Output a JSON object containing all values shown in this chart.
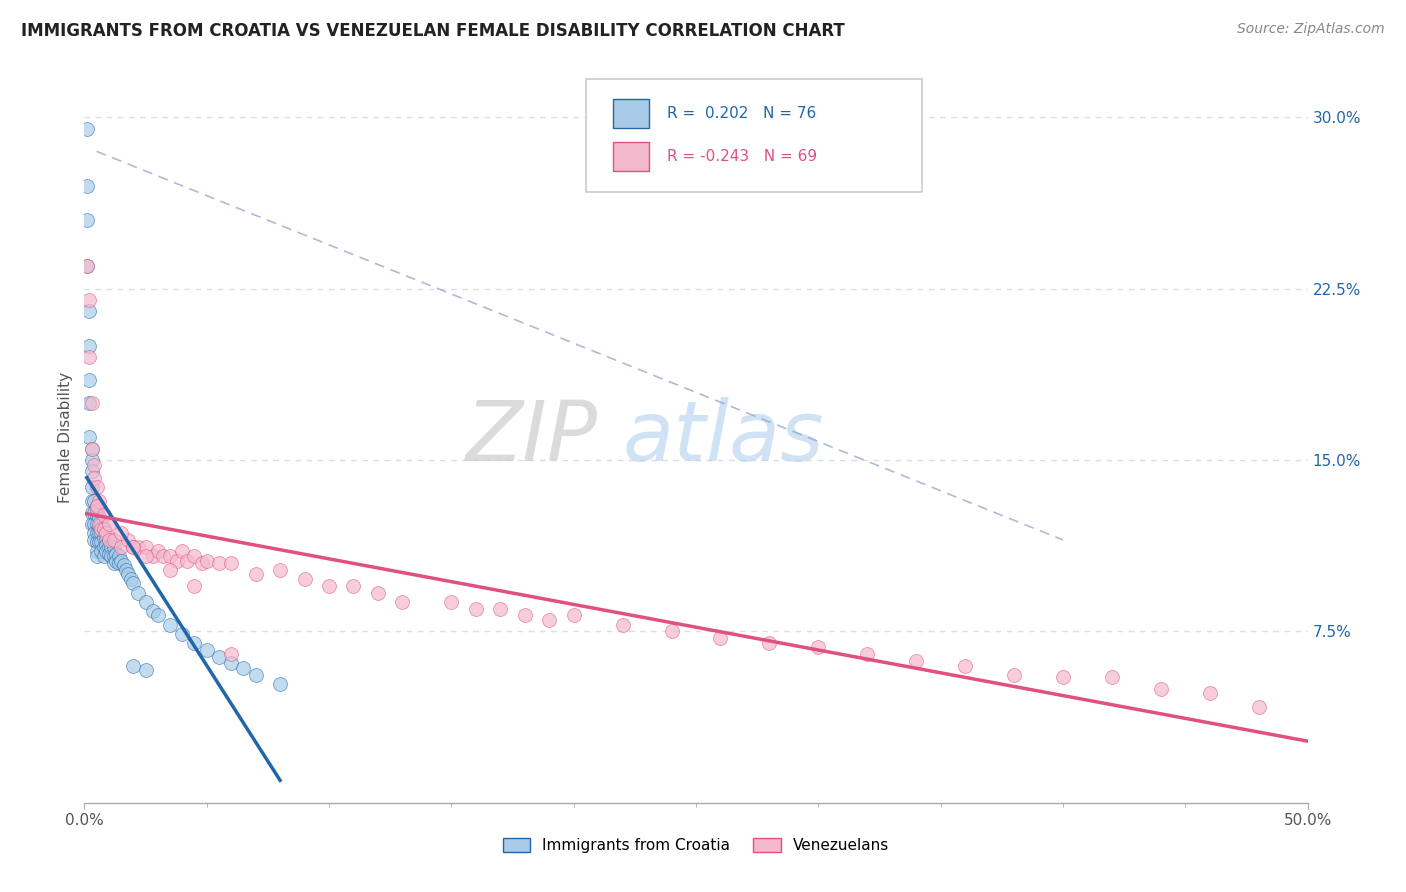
{
  "title": "IMMIGRANTS FROM CROATIA VS VENEZUELAN FEMALE DISABILITY CORRELATION CHART",
  "source": "Source: ZipAtlas.com",
  "ylabel": "Female Disability",
  "legend_label1": "Immigrants from Croatia",
  "legend_label2": "Venezuelans",
  "r1": 0.202,
  "n1": 76,
  "r2": -0.243,
  "n2": 69,
  "xlim": [
    0.0,
    0.5
  ],
  "ylim": [
    0.0,
    0.32
  ],
  "yticks_right": [
    0.075,
    0.15,
    0.225,
    0.3
  ],
  "ytick_labels_right": [
    "7.5%",
    "15.0%",
    "22.5%",
    "30.0%"
  ],
  "color_blue": "#a8cce8",
  "color_pink": "#f4b8cc",
  "line_blue": "#2266aa",
  "line_pink": "#e05080",
  "color_blue_text": "#2266aa",
  "color_pink_text": "#e05080",
  "background": "#ffffff",
  "grid_color": "#dddddd",
  "blue_x": [
    0.001,
    0.001,
    0.001,
    0.001,
    0.002,
    0.002,
    0.002,
    0.002,
    0.002,
    0.003,
    0.003,
    0.003,
    0.003,
    0.003,
    0.003,
    0.003,
    0.004,
    0.004,
    0.004,
    0.004,
    0.004,
    0.005,
    0.005,
    0.005,
    0.005,
    0.005,
    0.005,
    0.005,
    0.006,
    0.006,
    0.006,
    0.006,
    0.007,
    0.007,
    0.007,
    0.007,
    0.008,
    0.008,
    0.008,
    0.008,
    0.009,
    0.009,
    0.009,
    0.01,
    0.01,
    0.01,
    0.011,
    0.011,
    0.012,
    0.012,
    0.012,
    0.013,
    0.013,
    0.014,
    0.014,
    0.015,
    0.016,
    0.017,
    0.018,
    0.019,
    0.02,
    0.022,
    0.025,
    0.028,
    0.03,
    0.035,
    0.04,
    0.045,
    0.05,
    0.055,
    0.06,
    0.065,
    0.07,
    0.08,
    0.02,
    0.025
  ],
  "blue_y": [
    0.295,
    0.27,
    0.255,
    0.235,
    0.215,
    0.2,
    0.185,
    0.175,
    0.16,
    0.155,
    0.15,
    0.145,
    0.138,
    0.132,
    0.127,
    0.122,
    0.132,
    0.127,
    0.122,
    0.118,
    0.115,
    0.13,
    0.126,
    0.122,
    0.118,
    0.114,
    0.11,
    0.108,
    0.125,
    0.121,
    0.118,
    0.114,
    0.122,
    0.118,
    0.114,
    0.11,
    0.12,
    0.116,
    0.112,
    0.108,
    0.116,
    0.113,
    0.11,
    0.115,
    0.112,
    0.109,
    0.112,
    0.108,
    0.112,
    0.108,
    0.105,
    0.109,
    0.106,
    0.108,
    0.105,
    0.106,
    0.104,
    0.102,
    0.1,
    0.098,
    0.096,
    0.092,
    0.088,
    0.084,
    0.082,
    0.078,
    0.074,
    0.07,
    0.067,
    0.064,
    0.061,
    0.059,
    0.056,
    0.052,
    0.06,
    0.058
  ],
  "pink_x": [
    0.001,
    0.002,
    0.002,
    0.003,
    0.003,
    0.004,
    0.004,
    0.005,
    0.005,
    0.006,
    0.006,
    0.007,
    0.008,
    0.009,
    0.01,
    0.012,
    0.015,
    0.018,
    0.02,
    0.022,
    0.025,
    0.028,
    0.03,
    0.032,
    0.035,
    0.038,
    0.04,
    0.042,
    0.045,
    0.048,
    0.05,
    0.055,
    0.06,
    0.07,
    0.08,
    0.09,
    0.1,
    0.11,
    0.12,
    0.13,
    0.15,
    0.16,
    0.17,
    0.18,
    0.19,
    0.2,
    0.22,
    0.24,
    0.26,
    0.28,
    0.3,
    0.32,
    0.34,
    0.36,
    0.38,
    0.4,
    0.42,
    0.44,
    0.46,
    0.48,
    0.005,
    0.008,
    0.01,
    0.015,
    0.02,
    0.025,
    0.035,
    0.045,
    0.06
  ],
  "pink_y": [
    0.235,
    0.22,
    0.195,
    0.175,
    0.155,
    0.148,
    0.142,
    0.138,
    0.128,
    0.132,
    0.122,
    0.12,
    0.12,
    0.118,
    0.115,
    0.115,
    0.112,
    0.115,
    0.112,
    0.112,
    0.112,
    0.108,
    0.11,
    0.108,
    0.108,
    0.106,
    0.11,
    0.106,
    0.108,
    0.105,
    0.106,
    0.105,
    0.105,
    0.1,
    0.102,
    0.098,
    0.095,
    0.095,
    0.092,
    0.088,
    0.088,
    0.085,
    0.085,
    0.082,
    0.08,
    0.082,
    0.078,
    0.075,
    0.072,
    0.07,
    0.068,
    0.065,
    0.062,
    0.06,
    0.056,
    0.055,
    0.055,
    0.05,
    0.048,
    0.042,
    0.13,
    0.126,
    0.122,
    0.118,
    0.112,
    0.108,
    0.102,
    0.095,
    0.065
  ]
}
